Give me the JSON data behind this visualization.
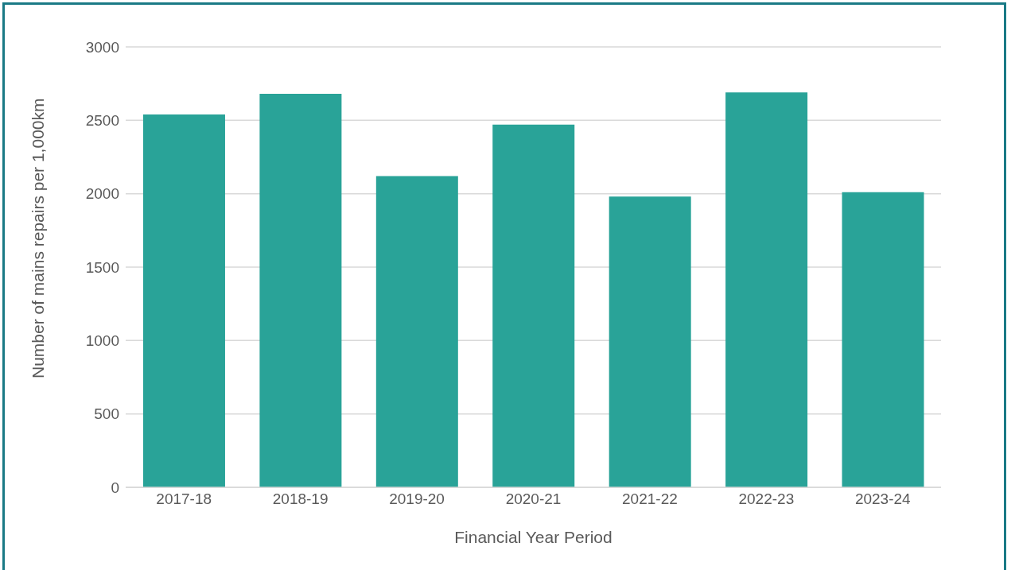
{
  "chart_data": {
    "type": "bar",
    "xlabel": "Financial Year Period",
    "ylabel": "Number  of mains repairs per 1,000km",
    "categories": [
      "2017-18",
      "2018-19",
      "2019-20",
      "2020-21",
      "2021-22",
      "2022-23",
      "2023-24"
    ],
    "values": [
      2540,
      2680,
      2120,
      2470,
      1980,
      2690,
      2010
    ],
    "color": "#29a398",
    "ylim": [
      0,
      3000
    ],
    "yticks": [
      0,
      500,
      1000,
      1500,
      2000,
      2500,
      3000
    ],
    "grid": "y",
    "legend": false
  }
}
